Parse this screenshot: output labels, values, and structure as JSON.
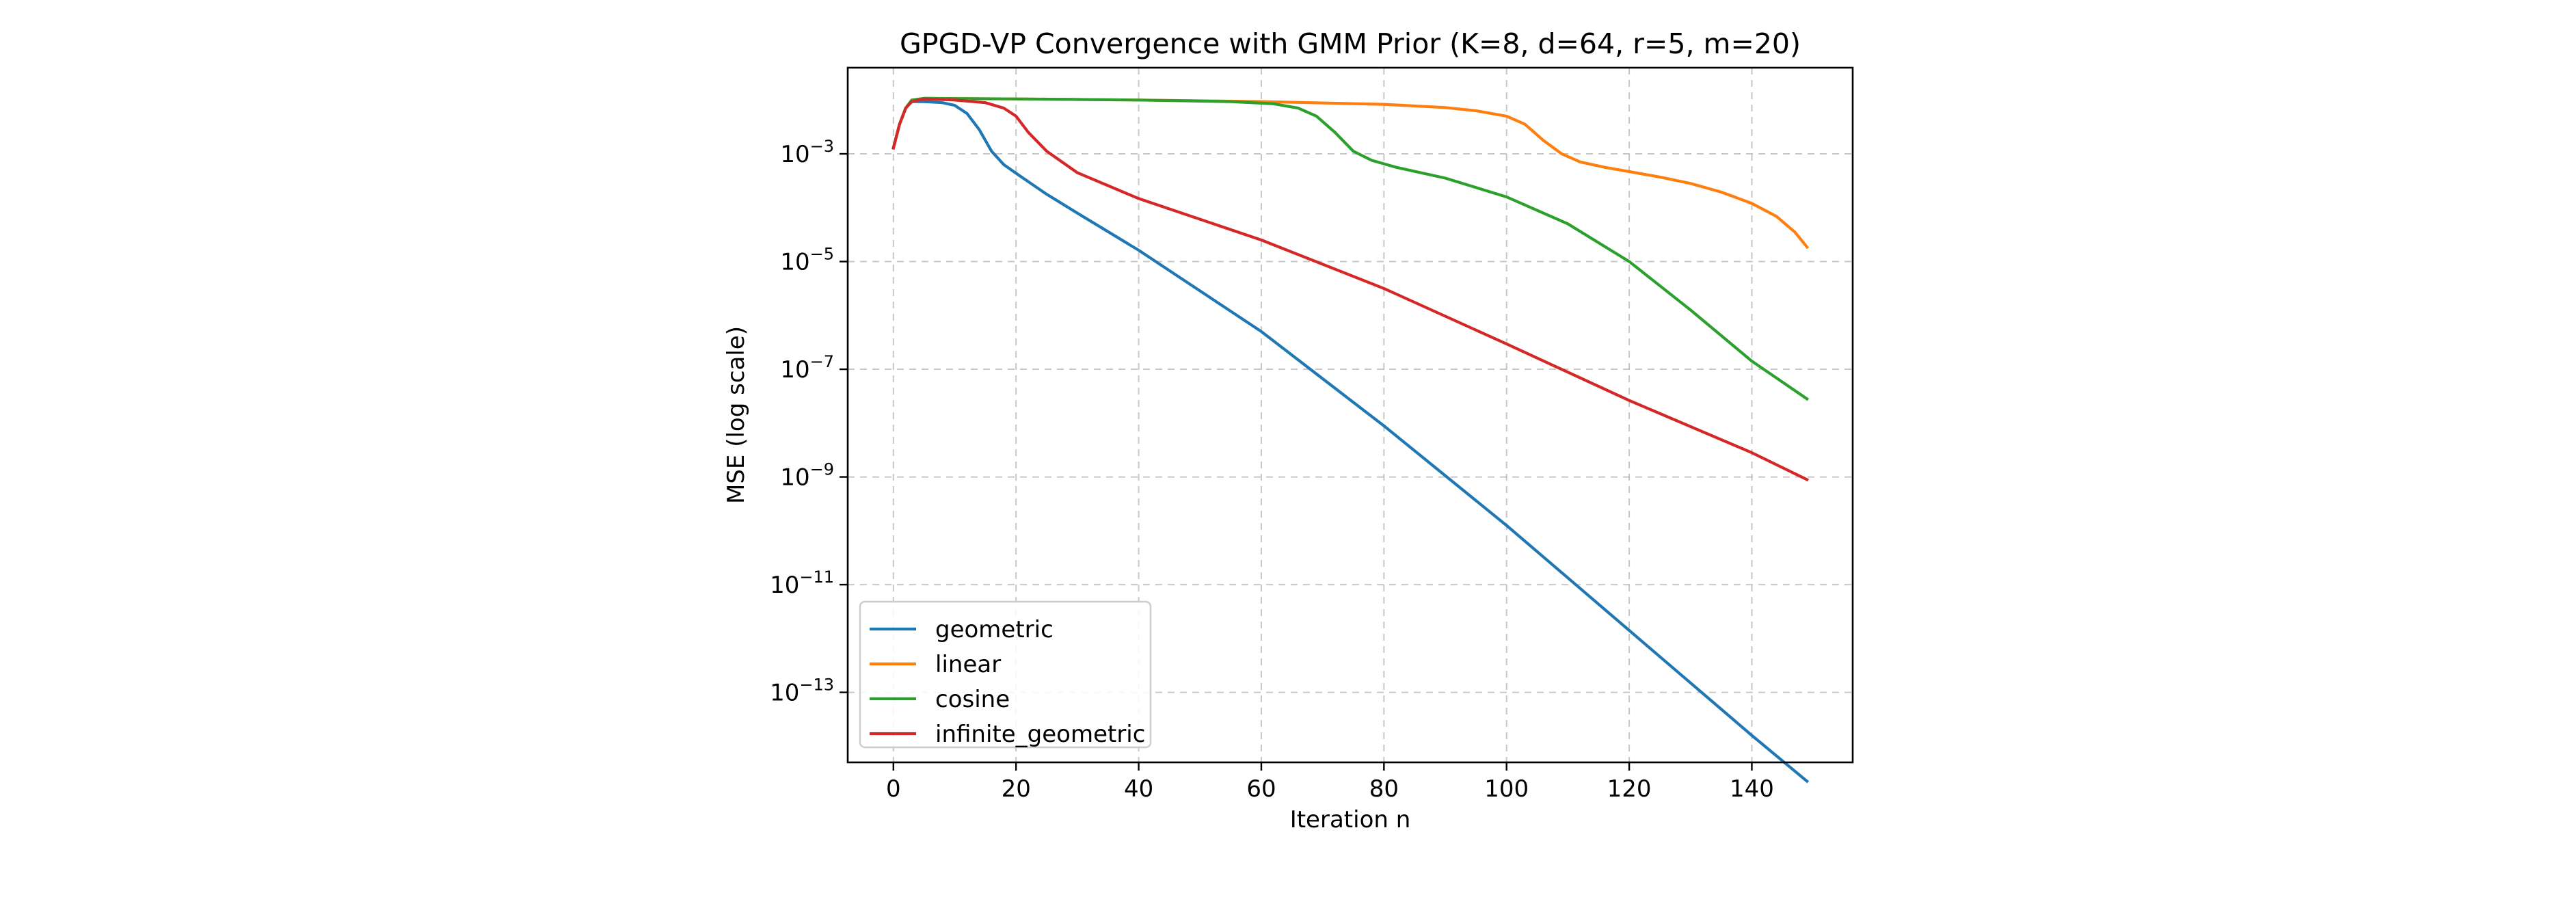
{
  "chart_data": {
    "type": "line",
    "title": "GPGD-VP Convergence with GMM Prior (K=8, d=64, r=5, m=20)",
    "xlabel": "Iteration n",
    "ylabel": "MSE (log scale)",
    "yscale": "log",
    "xlim": [
      -7.45,
      156.45
    ],
    "ylim_log10": [
      -14.3,
      -1.4
    ],
    "xticks": [
      0,
      20,
      40,
      60,
      80,
      100,
      120,
      140
    ],
    "xtick_labels": [
      "0",
      "20",
      "40",
      "60",
      "80",
      "100",
      "120",
      "140"
    ],
    "yticks_log10": [
      -3,
      -5,
      -7,
      -9,
      -11,
      -13
    ],
    "ytick_labels": [
      {
        "base": "10",
        "exp": "−3"
      },
      {
        "base": "10",
        "exp": "−5"
      },
      {
        "base": "10",
        "exp": "−7"
      },
      {
        "base": "10",
        "exp": "−9"
      },
      {
        "base": "10",
        "exp": "−11"
      },
      {
        "base": "10",
        "exp": "−13"
      }
    ],
    "grid": true,
    "legend_position": "lower-left",
    "series": [
      {
        "name": "geometric",
        "color": "#1f77b4",
        "points_log10": [
          [
            0,
            -2.89
          ],
          [
            1,
            -2.45
          ],
          [
            2,
            -2.15
          ],
          [
            3,
            -2.03
          ],
          [
            5,
            -2.03
          ],
          [
            8,
            -2.05
          ],
          [
            10,
            -2.1
          ],
          [
            12,
            -2.25
          ],
          [
            14,
            -2.55
          ],
          [
            16,
            -2.95
          ],
          [
            18,
            -3.2
          ],
          [
            20,
            -3.36
          ],
          [
            25,
            -3.75
          ],
          [
            30,
            -4.1
          ],
          [
            40,
            -4.79
          ],
          [
            60,
            -6.3
          ],
          [
            80,
            -8.05
          ],
          [
            100,
            -9.9
          ],
          [
            120,
            -11.85
          ],
          [
            140,
            -13.8
          ],
          [
            149,
            -14.65
          ]
        ]
      },
      {
        "name": "linear",
        "color": "#ff7f0e",
        "points_log10": [
          [
            0,
            -2.89
          ],
          [
            1,
            -2.45
          ],
          [
            2,
            -2.15
          ],
          [
            3,
            -2.0
          ],
          [
            5,
            -1.97
          ],
          [
            20,
            -1.98
          ],
          [
            40,
            -2.0
          ],
          [
            60,
            -2.03
          ],
          [
            80,
            -2.08
          ],
          [
            90,
            -2.14
          ],
          [
            95,
            -2.2
          ],
          [
            100,
            -2.3
          ],
          [
            103,
            -2.45
          ],
          [
            106,
            -2.75
          ],
          [
            109,
            -3.0
          ],
          [
            112,
            -3.15
          ],
          [
            116,
            -3.25
          ],
          [
            120,
            -3.33
          ],
          [
            125,
            -3.43
          ],
          [
            130,
            -3.55
          ],
          [
            135,
            -3.71
          ],
          [
            140,
            -3.92
          ],
          [
            144,
            -4.16
          ],
          [
            147,
            -4.45
          ],
          [
            149,
            -4.73
          ]
        ]
      },
      {
        "name": "cosine",
        "color": "#2ca02c",
        "points_log10": [
          [
            0,
            -2.89
          ],
          [
            1,
            -2.45
          ],
          [
            2,
            -2.15
          ],
          [
            3,
            -2.0
          ],
          [
            5,
            -1.97
          ],
          [
            20,
            -1.98
          ],
          [
            40,
            -2.0
          ],
          [
            55,
            -2.03
          ],
          [
            62,
            -2.07
          ],
          [
            66,
            -2.15
          ],
          [
            69,
            -2.3
          ],
          [
            72,
            -2.6
          ],
          [
            75,
            -2.95
          ],
          [
            78,
            -3.12
          ],
          [
            82,
            -3.25
          ],
          [
            90,
            -3.45
          ],
          [
            100,
            -3.8
          ],
          [
            110,
            -4.3
          ],
          [
            120,
            -5.0
          ],
          [
            130,
            -5.9
          ],
          [
            140,
            -6.85
          ],
          [
            149,
            -7.55
          ]
        ]
      },
      {
        "name": "infinite_geometric",
        "color": "#d62728",
        "points_log10": [
          [
            0,
            -2.89
          ],
          [
            1,
            -2.45
          ],
          [
            2,
            -2.15
          ],
          [
            3,
            -2.03
          ],
          [
            5,
            -1.98
          ],
          [
            10,
            -2.0
          ],
          [
            15,
            -2.05
          ],
          [
            18,
            -2.15
          ],
          [
            20,
            -2.3
          ],
          [
            22,
            -2.6
          ],
          [
            25,
            -2.95
          ],
          [
            30,
            -3.35
          ],
          [
            40,
            -3.83
          ],
          [
            60,
            -4.6
          ],
          [
            80,
            -5.5
          ],
          [
            100,
            -6.53
          ],
          [
            120,
            -7.58
          ],
          [
            140,
            -8.55
          ],
          [
            149,
            -9.05
          ]
        ]
      }
    ]
  }
}
